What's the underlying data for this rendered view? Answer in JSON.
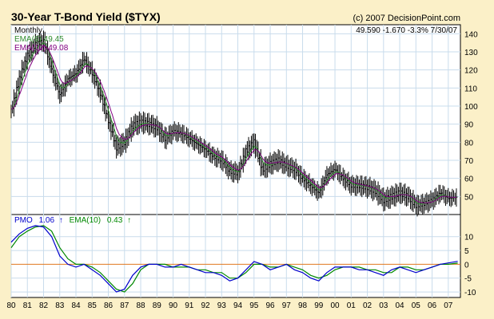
{
  "header": {
    "title": "30-Year T-Bond Yield ($TYX)",
    "copyright": "(c) 2007 DecisionPoint.com"
  },
  "price_panel": {
    "period": "Monthly",
    "ema6_label": "EMA(6) 49.45",
    "ema10_label": "EMA(10) 49.08",
    "quote": "49.590  -1.670  -3.3%  7/30/07"
  },
  "pmo_panel": {
    "pmo_label": "PMO",
    "pmo_value": "1.06",
    "ema_label": "EMA(10)",
    "ema_value": "0.43",
    "pmo_arrow": "↑",
    "ema_arrow": "↑"
  },
  "colors": {
    "background": "#FBF0C8",
    "panel": "#FFFFFF",
    "grid": "#C9DCEC",
    "price_bars": "#000000",
    "ema6": "#2E8B2E",
    "ema10": "#800080",
    "pmo": "#0000CC",
    "pmo_ema": "#008800",
    "zero_line": "#E07820"
  },
  "chart_data": [
    {
      "type": "line",
      "title": "30-Year T-Bond Yield ($TYX)",
      "x": [
        1980.0,
        1980.5,
        1981.0,
        1981.5,
        1982.0,
        1982.5,
        1983.0,
        1983.5,
        1984.0,
        1984.5,
        1985.0,
        1985.5,
        1986.0,
        1986.5,
        1987.0,
        1987.5,
        1988.0,
        1988.5,
        1989.0,
        1989.5,
        1990.0,
        1990.5,
        1991.0,
        1991.5,
        1992.0,
        1992.5,
        1993.0,
        1993.5,
        1994.0,
        1994.5,
        1995.0,
        1995.5,
        1996.0,
        1996.5,
        1997.0,
        1997.5,
        1998.0,
        1998.5,
        1999.0,
        1999.5,
        2000.0,
        2000.5,
        2001.0,
        2001.5,
        2002.0,
        2002.5,
        2003.0,
        2003.5,
        2004.0,
        2004.5,
        2005.0,
        2005.5,
        2006.0,
        2006.5,
        2007.0,
        2007.58
      ],
      "x_tick_labels": [
        "80",
        "81",
        "82",
        "83",
        "84",
        "85",
        "86",
        "87",
        "88",
        "89",
        "90",
        "91",
        "92",
        "93",
        "94",
        "95",
        "96",
        "97",
        "98",
        "99",
        "00",
        "01",
        "02",
        "03",
        "04",
        "05",
        "06",
        "07"
      ],
      "series": [
        {
          "values": [
            97,
            115,
            128,
            134,
            136,
            120,
            106,
            115,
            118,
            126,
            118,
            107,
            92,
            77,
            80,
            89,
            91,
            90,
            88,
            82,
            86,
            85,
            82,
            79,
            76,
            72,
            70,
            64,
            63,
            75,
            80,
            65,
            68,
            70,
            67,
            65,
            60,
            56,
            52,
            62,
            65,
            60,
            56,
            56,
            55,
            53,
            48,
            50,
            52,
            50,
            45,
            46,
            48,
            52,
            49,
            49.59
          ]
        }
      ],
      "ylim": [
        40,
        145
      ],
      "y_ticks": [
        50,
        60,
        70,
        80,
        90,
        100,
        110,
        120,
        130,
        140
      ],
      "grid": true
    },
    {
      "type": "line",
      "series": [
        {
          "name": "PMO",
          "values": [
            8,
            11,
            13,
            14,
            13.5,
            10,
            3,
            0,
            -1,
            0,
            -2,
            -4,
            -7,
            -10,
            -9,
            -4,
            -1,
            0,
            0,
            -1,
            -1,
            0,
            -1,
            -2,
            -3,
            -3,
            -4,
            -6,
            -5,
            -2,
            1,
            0,
            -2,
            -1,
            0,
            -2,
            -3,
            -5,
            -6,
            -3,
            -1,
            -1,
            -1,
            -2,
            -2,
            -3,
            -4,
            -2,
            -1,
            -2,
            -3,
            -2,
            -1,
            0,
            0.5,
            1.06
          ]
        },
        {
          "name": "EMA(10)",
          "values": [
            6,
            10,
            12,
            13.5,
            14,
            12,
            6,
            2,
            0,
            0,
            -1,
            -3,
            -6,
            -9,
            -10,
            -7,
            -2,
            0,
            0,
            0,
            -1,
            -1,
            -1,
            -2,
            -2,
            -3,
            -3,
            -5,
            -5,
            -3,
            0,
            0,
            -1,
            -1,
            0,
            -1,
            -2,
            -4,
            -5,
            -4,
            -2,
            -1,
            -1,
            -1,
            -2,
            -2,
            -3,
            -3,
            -1,
            -1,
            -2,
            -2,
            -1,
            0,
            0,
            0.43
          ]
        }
      ],
      "ylim": [
        -12,
        18
      ],
      "y_ticks": [
        -10,
        -5,
        0,
        5,
        10
      ],
      "grid": true
    }
  ]
}
